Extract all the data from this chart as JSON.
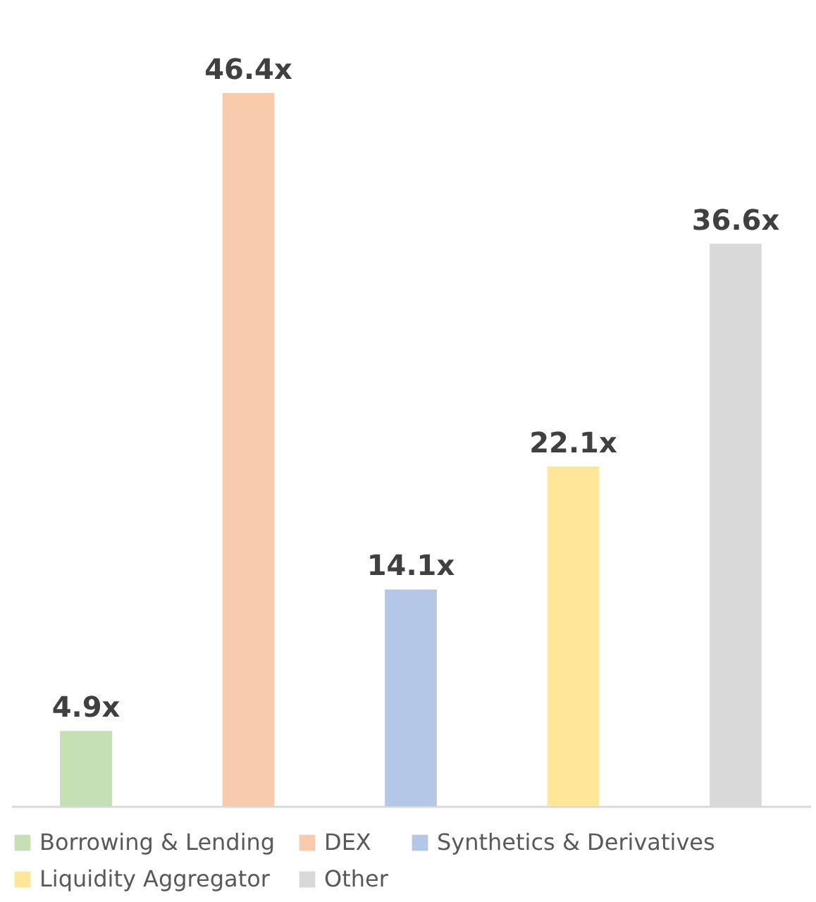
{
  "chart_data": {
    "type": "bar",
    "categories": [
      null,
      null,
      null,
      null,
      null
    ],
    "series": [
      {
        "name": "Borrowing & Lending",
        "color": "#c5e0b4",
        "values": [
          4.9,
          null,
          null,
          null,
          null
        ],
        "value_labels": [
          "4.9x",
          null,
          null,
          null,
          null
        ]
      },
      {
        "name": "DEX",
        "color": "#f8cbad",
        "values": [
          null,
          46.4,
          null,
          null,
          null
        ],
        "value_labels": [
          null,
          "46.4x",
          null,
          null,
          null
        ]
      },
      {
        "name": "Synthetics & Derivatives",
        "color": "#b4c7e7",
        "values": [
          null,
          null,
          14.1,
          null,
          null
        ],
        "value_labels": [
          null,
          null,
          "14.1x",
          null,
          null
        ]
      },
      {
        "name": "Liquidity Aggregator",
        "color": "#ffe699",
        "values": [
          null,
          null,
          null,
          22.1,
          null
        ],
        "value_labels": [
          null,
          null,
          null,
          "22.1x",
          null
        ]
      },
      {
        "name": "Other",
        "color": "#d9d9d9",
        "values": [
          null,
          null,
          null,
          null,
          36.6
        ],
        "value_labels": [
          null,
          null,
          null,
          null,
          "36.6x"
        ]
      }
    ],
    "stacked": true,
    "legend": "bottom",
    "tick_labels": false
  }
}
